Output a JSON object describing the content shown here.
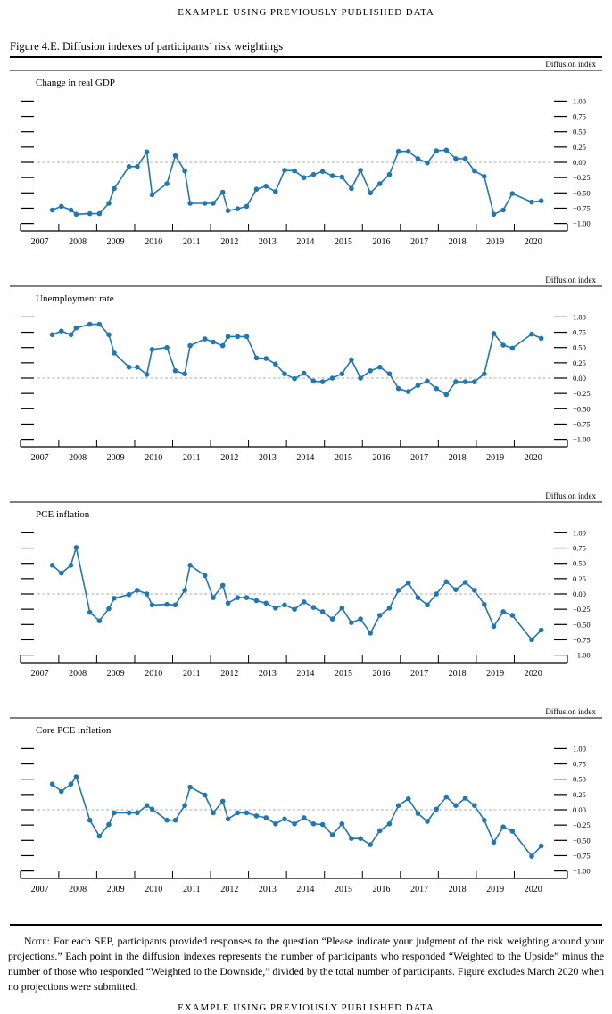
{
  "page": {
    "header": "EXAMPLE USING PREVIOUSLY PUBLISHED DATA",
    "figure_title": "Figure 4.E. Diffusion indexes of participants’ risk weightings",
    "note_label": "Note:",
    "note_text": "For each SEP, participants provided responses to the question “Please indicate your judgment of the risk weighting around your projections.” Each point in the diffusion indexes represents the number of participants who responded “Weighted to the Upside” minus the number of those who responded “Weighted to the Downside,” divided by the total number of participants. Figure excludes March 2020 when no projections were submitted.",
    "footer": "EXAMPLE USING PREVIOUSLY PUBLISHED DATA"
  },
  "chart_data": {
    "type": "line",
    "unit_label": "Diffusion index",
    "line_color": "#1f77b4",
    "zero_line_color": "#adadad",
    "zero_line_style": "dashed",
    "ylim": [
      -1.0,
      1.0
    ],
    "yticks": [
      1.0,
      0.75,
      0.5,
      0.25,
      0.0,
      -0.25,
      -0.5,
      -0.75,
      -1.0
    ],
    "ytick_labels": [
      "1.00",
      "0.75",
      "0.50",
      "0.25",
      "0.00",
      "−0.25",
      "−0.50",
      "−0.75",
      "−1.00"
    ],
    "x_year_labels": [
      "2007",
      "2008",
      "2009",
      "2010",
      "2011",
      "2012",
      "2013",
      "2014",
      "2015",
      "2016",
      "2017",
      "2018",
      "2019",
      "2020"
    ],
    "x_range": [
      2007.0,
      2021.4
    ],
    "x": [
      2007.83,
      2008.07,
      2008.32,
      2008.46,
      2008.82,
      2009.07,
      2009.32,
      2009.46,
      2009.85,
      2010.07,
      2010.32,
      2010.46,
      2010.85,
      2011.07,
      2011.32,
      2011.46,
      2011.85,
      2012.07,
      2012.32,
      2012.46,
      2012.71,
      2012.95,
      2013.21,
      2013.46,
      2013.71,
      2013.95,
      2014.21,
      2014.46,
      2014.71,
      2014.95,
      2015.21,
      2015.46,
      2015.71,
      2015.95,
      2016.21,
      2016.46,
      2016.71,
      2016.95,
      2017.21,
      2017.46,
      2017.71,
      2017.95,
      2018.21,
      2018.46,
      2018.71,
      2018.95,
      2019.21,
      2019.46,
      2019.71,
      2019.95,
      2020.46,
      2020.71
    ],
    "panels": [
      {
        "title": "Change in real GDP",
        "values": [
          -0.78,
          -0.72,
          -0.78,
          -0.85,
          -0.84,
          -0.84,
          -0.67,
          -0.43,
          -0.07,
          -0.07,
          0.17,
          -0.53,
          -0.35,
          0.11,
          -0.14,
          -0.67,
          -0.67,
          -0.67,
          -0.49,
          -0.79,
          -0.76,
          -0.72,
          -0.44,
          -0.39,
          -0.48,
          -0.13,
          -0.14,
          -0.25,
          -0.2,
          -0.15,
          -0.22,
          -0.24,
          -0.43,
          -0.13,
          -0.5,
          -0.35,
          -0.2,
          0.18,
          0.18,
          0.06,
          -0.01,
          0.19,
          0.2,
          0.06,
          0.06,
          -0.14,
          -0.23,
          -0.85,
          -0.78,
          -0.51,
          -0.65,
          -0.63
        ]
      },
      {
        "title": "Unemployment rate",
        "values": [
          0.71,
          0.77,
          0.71,
          0.82,
          0.88,
          0.88,
          0.71,
          0.41,
          0.18,
          0.18,
          0.06,
          0.47,
          0.5,
          0.12,
          0.07,
          0.53,
          0.64,
          0.59,
          0.53,
          0.68,
          0.68,
          0.68,
          0.33,
          0.32,
          0.23,
          0.07,
          -0.01,
          0.08,
          -0.05,
          -0.06,
          0.0,
          0.07,
          0.3,
          0.0,
          0.12,
          0.18,
          0.07,
          -0.17,
          -0.22,
          -0.12,
          -0.05,
          -0.17,
          -0.27,
          -0.06,
          -0.06,
          -0.06,
          0.07,
          0.73,
          0.54,
          0.49,
          0.72,
          0.65
        ]
      },
      {
        "title": "PCE inflation",
        "values": [
          0.47,
          0.34,
          0.47,
          0.76,
          -0.3,
          -0.44,
          -0.24,
          -0.07,
          -0.01,
          0.06,
          0.0,
          -0.18,
          -0.17,
          -0.18,
          0.06,
          0.47,
          0.3,
          -0.06,
          0.14,
          -0.15,
          -0.06,
          -0.06,
          -0.11,
          -0.15,
          -0.23,
          -0.18,
          -0.25,
          -0.13,
          -0.22,
          -0.29,
          -0.41,
          -0.23,
          -0.47,
          -0.41,
          -0.64,
          -0.35,
          -0.23,
          0.06,
          0.18,
          -0.06,
          -0.18,
          0.0,
          0.2,
          0.07,
          0.19,
          0.06,
          -0.17,
          -0.53,
          -0.29,
          -0.35,
          -0.75,
          -0.59
        ]
      },
      {
        "title": "Core PCE inflation",
        "values": [
          0.42,
          0.3,
          0.42,
          0.54,
          -0.17,
          -0.43,
          -0.24,
          -0.05,
          -0.05,
          -0.05,
          0.07,
          0.01,
          -0.17,
          -0.17,
          0.07,
          0.37,
          0.24,
          -0.05,
          0.14,
          -0.15,
          -0.05,
          -0.05,
          -0.1,
          -0.13,
          -0.23,
          -0.15,
          -0.23,
          -0.13,
          -0.23,
          -0.24,
          -0.41,
          -0.23,
          -0.47,
          -0.47,
          -0.57,
          -0.34,
          -0.23,
          0.07,
          0.18,
          -0.06,
          -0.19,
          0.01,
          0.21,
          0.07,
          0.19,
          0.07,
          -0.17,
          -0.53,
          -0.28,
          -0.35,
          -0.76,
          -0.59
        ]
      }
    ]
  }
}
